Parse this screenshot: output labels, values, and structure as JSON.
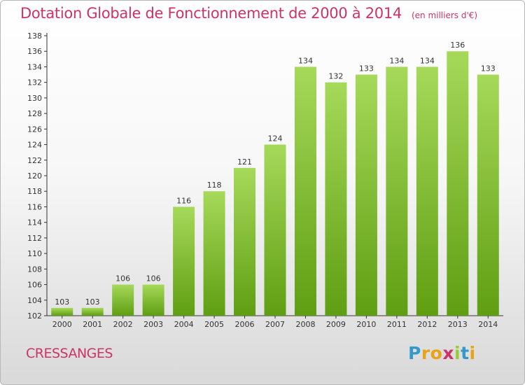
{
  "header": {
    "title": "Dotation Globale de Fonctionnement de 2000 à 2014",
    "unit": "(en milliers d'€)"
  },
  "footer": {
    "location": "CRESSANGES",
    "logo_text": "Proxiti",
    "logo_colors": [
      "#3399cc",
      "#e8a317",
      "#e8a317",
      "#cc3366",
      "#99cc33",
      "#3399cc",
      "#e8a317"
    ]
  },
  "colors": {
    "title": "#cc3366",
    "bar_light": "#a6d95a",
    "bar_dark": "#5f9e12",
    "axis": "#333333"
  },
  "chart_data": {
    "type": "bar",
    "categories": [
      "2000",
      "2001",
      "2002",
      "2003",
      "2004",
      "2005",
      "2006",
      "2007",
      "2008",
      "2009",
      "2010",
      "2011",
      "2012",
      "2013",
      "2014"
    ],
    "values": [
      103,
      103,
      106,
      106,
      116,
      118,
      121,
      124,
      134,
      132,
      133,
      134,
      134,
      136,
      133
    ],
    "ylim": [
      102,
      138
    ],
    "yticks": [
      102,
      104,
      106,
      108,
      110,
      112,
      114,
      116,
      118,
      120,
      122,
      124,
      126,
      128,
      130,
      132,
      134,
      136,
      138
    ],
    "grid": false,
    "legend": "none"
  }
}
